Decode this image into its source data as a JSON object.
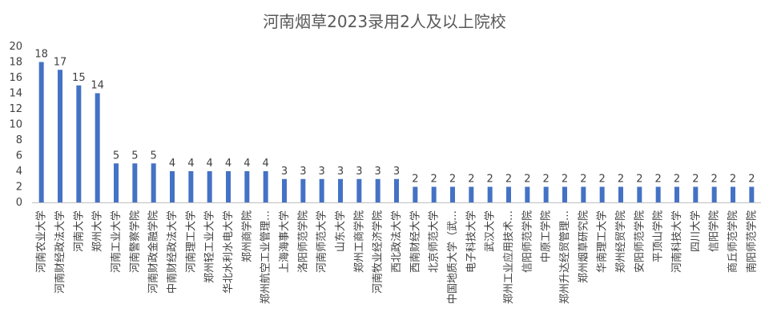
{
  "chart_data": {
    "type": "bar",
    "title": "河南烟草2023录用2人及以上院校",
    "xlabel": "",
    "ylabel": "",
    "ylim": [
      0,
      20
    ],
    "yticks": [
      0,
      2,
      4,
      6,
      8,
      10,
      12,
      14,
      16,
      18,
      20
    ],
    "grid": false,
    "legend": "none",
    "bar_color": "#4472C4",
    "categories": [
      "河南农业大学",
      "河南财经政法大学",
      "河南大学",
      "郑州大学",
      "河南工业大学",
      "河南警察学院",
      "河南财政金融学院",
      "中南财经政法大学",
      "河南理工大学",
      "郑州轻工业大学",
      "华北水利水电大学",
      "郑州商学院",
      "郑州航空工业管理…",
      "上海海事大学",
      "洛阳师范学院",
      "河南师范大学",
      "山东大学",
      "郑州工商学院",
      "河南牧业经济学院",
      "西北政法大学",
      "西南财经大学",
      "北京师范大学",
      "中国地质大学（武…",
      "电子科技大学",
      "武汉大学",
      "郑州工业应用技术…",
      "信阳师范学院",
      "中原工学院",
      "郑州升达经贸管理…",
      "郑州烟草研究院",
      "华南理工大学",
      "郑州经贸学院",
      "安阳师范学院",
      "平顶山学院",
      "河南科技大学",
      "四川大学",
      "信阳学院",
      "商丘师范学院",
      "南阳师范学院"
    ],
    "values": [
      18,
      17,
      15,
      14,
      5,
      5,
      5,
      4,
      4,
      4,
      4,
      4,
      4,
      3,
      3,
      3,
      3,
      3,
      3,
      3,
      2,
      2,
      2,
      2,
      2,
      2,
      2,
      2,
      2,
      2,
      2,
      2,
      2,
      2,
      2,
      2,
      2,
      2,
      2
    ]
  }
}
